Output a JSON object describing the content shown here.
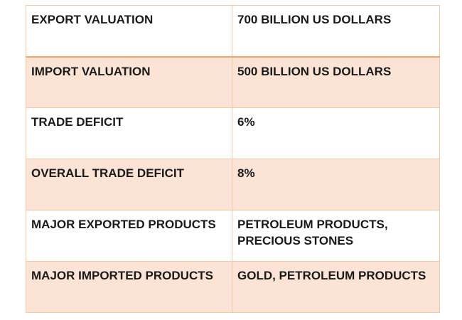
{
  "table": {
    "rows": [
      {
        "label": "EXPORT VALUATION",
        "value": "700 BILLION US DOLLARS"
      },
      {
        "label": "IMPORT VALUATION",
        "value": "500 BILLION US DOLLARS"
      },
      {
        "label": "TRADE DEFICIT",
        "value": "6%"
      },
      {
        "label": "OVERALL TRADE DEFICIT",
        "value": "8%"
      },
      {
        "label": "MAJOR EXPORTED PRODUCTS",
        "value": "PETROLEUM PRODUCTS,\nPRECIOUS STONES"
      },
      {
        "label": "MAJOR IMPORTED PRODUCTS",
        "value": "GOLD, PETROLEUM PRODUCTS"
      }
    ],
    "colors": {
      "band": "#fbe4d5",
      "plain": "#ffffff",
      "border": "#f5c9a8",
      "header_rule": "#f0a46a"
    }
  }
}
